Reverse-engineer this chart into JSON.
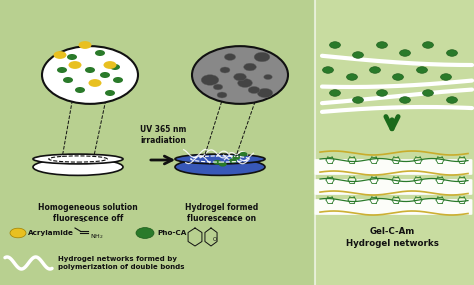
{
  "bg_color": "#b8d090",
  "bg_color2": "#c8dca0",
  "white": "#ffffff",
  "black": "#111111",
  "yellow": "#e8c020",
  "green_dark": "#2a7a2a",
  "green_med": "#3a9a3a",
  "blue_gel": "#2040a0",
  "blue_fill": "#3858b8",
  "gray_sem": "#888888",
  "gray_dark": "#444444",
  "arrow_green": "#1a6a1a",
  "text_uv": "UV 365 nm\nirradiation",
  "text_homo": "Homogeneous solution\nfluorescence off",
  "text_hydro": "Hydrogel formed\nfluorescence on",
  "text_acr": "Acrylamide",
  "text_phoca": "Pho-CA",
  "text_nets": "Hydrogel networks formed by\npolymerization of double bonds",
  "text_gel": "Gel-C-Am\nHydrogel networks",
  "figw": 4.74,
  "figh": 2.85,
  "dpi": 100
}
